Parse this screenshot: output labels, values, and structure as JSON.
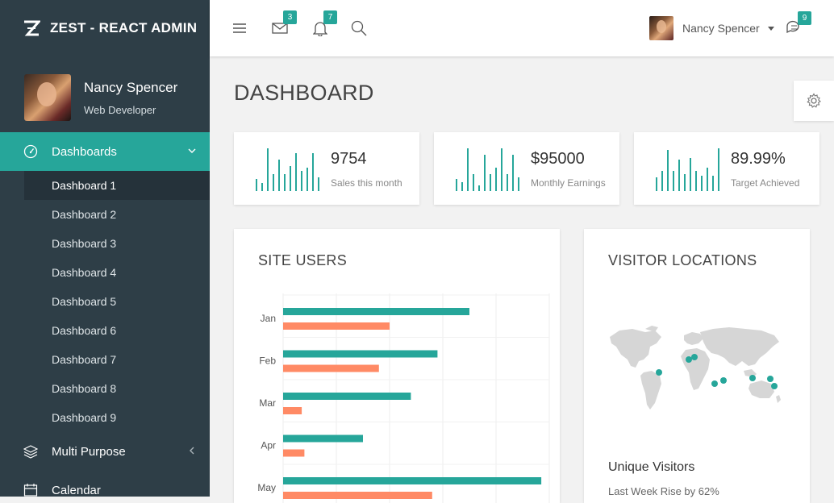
{
  "brand": {
    "title": "ZEST - REACT ADMIN"
  },
  "profile": {
    "name": "Nancy Spencer",
    "role": "Web Developer"
  },
  "sidebar": {
    "active_label": "Dashboards",
    "sub_items": [
      "Dashboard 1",
      "Dashboard 2",
      "Dashboard 3",
      "Dashboard 4",
      "Dashboard 5",
      "Dashboard 6",
      "Dashboard 7",
      "Dashboard 8",
      "Dashboard 9"
    ],
    "multi_label": "Multi Purpose",
    "calendar_label": "Calendar"
  },
  "topbar": {
    "mail_count": "3",
    "notif_count": "7",
    "chat_count": "9",
    "user_name": "Nancy Spencer"
  },
  "page": {
    "title": "DASHBOARD"
  },
  "stats": [
    {
      "value": "9754",
      "label": "Sales this month"
    },
    {
      "value": "$95000",
      "label": "Monthly Earnings"
    },
    {
      "value": "89.99%",
      "label": "Target Achieved"
    }
  ],
  "site_users": {
    "title": "SITE USERS"
  },
  "visitor_locations": {
    "title": "VISITOR LOCATIONS",
    "subtitle": "Unique Visitors",
    "note": "Last Week Rise by 62%"
  },
  "colors": {
    "accent": "#26a69a",
    "secondary": "#ff8a65",
    "sidebar": "#2e3e47"
  },
  "chart_data": {
    "type": "bar",
    "orientation": "horizontal",
    "title": "SITE USERS",
    "categories": [
      "Jan",
      "Feb",
      "Mar",
      "Apr",
      "May"
    ],
    "series": [
      {
        "values": [
          70,
          58,
          48,
          30,
          97
        ]
      },
      {
        "values": [
          40,
          36,
          7,
          8,
          56
        ]
      }
    ],
    "xlim": [
      0,
      100
    ],
    "grid": true
  }
}
